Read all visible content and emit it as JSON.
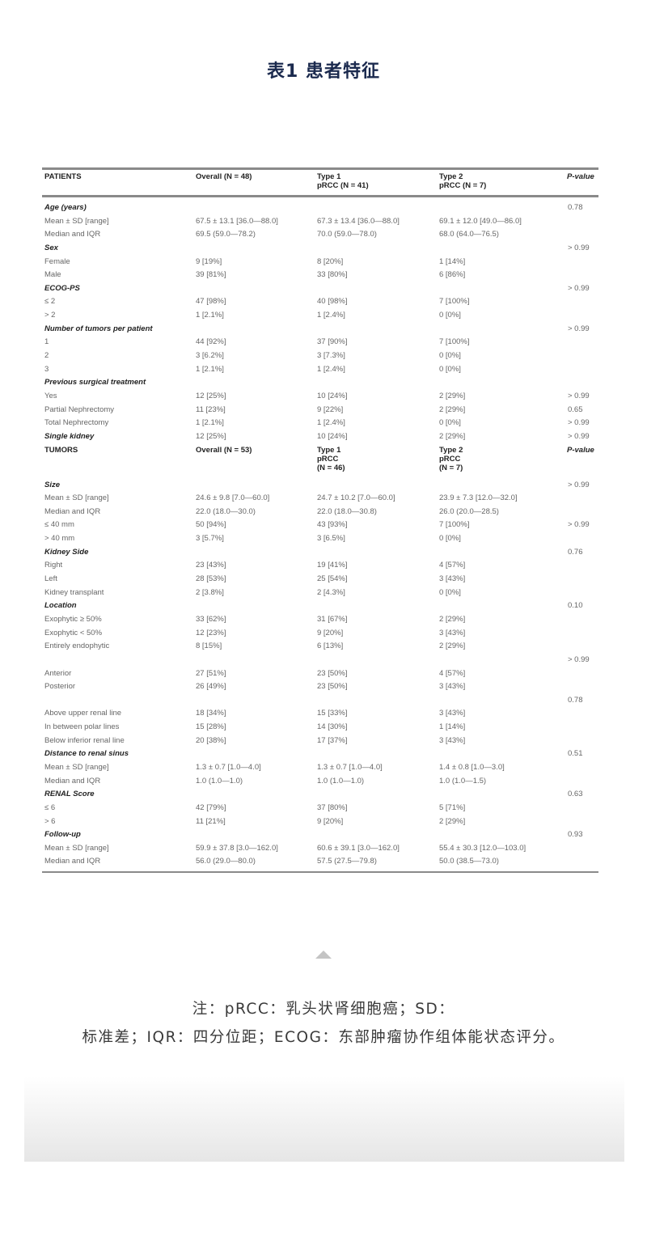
{
  "title": "表1 患者特征",
  "patients_header": {
    "label": "PATIENTS",
    "overall": "Overall (N = 48)",
    "type1": "Type 1\npRCC (N = 41)",
    "type2": "Type 2\npRCC (N = 7)",
    "p": "P-value"
  },
  "patients_rows": [
    {
      "kind": "section",
      "label": "Age (years)",
      "overall": "",
      "type1": "",
      "type2": "",
      "p": "0.78"
    },
    {
      "kind": "item",
      "label": "Mean ± SD [range]",
      "overall": "67.5 ± 13.1 [36.0—88.0]",
      "type1": "67.3 ± 13.4 [36.0—88.0]",
      "type2": "69.1 ± 12.0 [49.0—86.0]",
      "p": ""
    },
    {
      "kind": "item",
      "label": "Median and IQR",
      "overall": "69.5 (59.0—78.2)",
      "type1": "70.0 (59.0—78.0)",
      "type2": "68.0 (64.0—76.5)",
      "p": ""
    },
    {
      "kind": "section",
      "label": "Sex",
      "overall": "",
      "type1": "",
      "type2": "",
      "p": "> 0.99"
    },
    {
      "kind": "item",
      "label": "Female",
      "overall": "9 [19%]",
      "type1": "8 [20%]",
      "type2": "1 [14%]",
      "p": ""
    },
    {
      "kind": "item",
      "label": "Male",
      "overall": "39 [81%]",
      "type1": "33 [80%]",
      "type2": "6 [86%]",
      "p": ""
    },
    {
      "kind": "section",
      "label": "ECOG-PS",
      "overall": "",
      "type1": "",
      "type2": "",
      "p": "> 0.99"
    },
    {
      "kind": "item",
      "label": "≤ 2",
      "overall": "47 [98%]",
      "type1": "40 [98%]",
      "type2": "7 [100%]",
      "p": ""
    },
    {
      "kind": "item",
      "label": "> 2",
      "overall": "1 [2.1%]",
      "type1": "1 [2.4%]",
      "type2": "0 [0%]",
      "p": ""
    },
    {
      "kind": "section",
      "label": "Number of tumors per patient",
      "overall": "",
      "type1": "",
      "type2": "",
      "p": "> 0.99"
    },
    {
      "kind": "item",
      "label": "1",
      "overall": "44 [92%]",
      "type1": "37 [90%]",
      "type2": "7 [100%]",
      "p": ""
    },
    {
      "kind": "item",
      "label": "2",
      "overall": "3 [6.2%]",
      "type1": "3 [7.3%]",
      "type2": "0 [0%]",
      "p": ""
    },
    {
      "kind": "item",
      "label": "3",
      "overall": "1 [2.1%]",
      "type1": "1 [2.4%]",
      "type2": "0 [0%]",
      "p": ""
    },
    {
      "kind": "section",
      "label": "Previous surgical treatment",
      "overall": "",
      "type1": "",
      "type2": "",
      "p": ""
    },
    {
      "kind": "item",
      "label": "Yes",
      "overall": "12 [25%]",
      "type1": "10 [24%]",
      "type2": "2 [29%]",
      "p": "> 0.99"
    },
    {
      "kind": "item",
      "label": "Partial Nephrectomy",
      "overall": "11 [23%]",
      "type1": "9 [22%]",
      "type2": "2 [29%]",
      "p": "0.65"
    },
    {
      "kind": "item",
      "label": "Total Nephrectomy",
      "overall": "1 [2.1%]",
      "type1": "1 [2.4%]",
      "type2": "0 [0%]",
      "p": "> 0.99"
    },
    {
      "kind": "section",
      "label": "Single kidney",
      "overall": "12 [25%]",
      "type1": "10 [24%]",
      "type2": "2 [29%]",
      "p": "> 0.99"
    }
  ],
  "tumors_header": {
    "label": "TUMORS",
    "overall": "Overall (N = 53)",
    "type1": "Type 1\npRCC\n(N = 46)",
    "type2": "Type 2\npRCC\n(N = 7)",
    "p": "P-value"
  },
  "tumors_rows": [
    {
      "kind": "section",
      "label": "Size",
      "overall": "",
      "type1": "",
      "type2": "",
      "p": "> 0.99"
    },
    {
      "kind": "item",
      "label": "Mean ± SD [range]",
      "overall": "24.6 ± 9.8 [7.0—60.0]",
      "type1": "24.7 ± 10.2 [7.0—60.0]",
      "type2": "23.9 ± 7.3 [12.0—32.0]",
      "p": ""
    },
    {
      "kind": "item",
      "label": "Median and IQR",
      "overall": "22.0 (18.0—30.0)",
      "type1": "22.0 (18.0—30.8)",
      "type2": "26.0 (20.0—28.5)",
      "p": ""
    },
    {
      "kind": "item",
      "label": "≤ 40 mm",
      "overall": "50 [94%]",
      "type1": "43 [93%]",
      "type2": "7 [100%]",
      "p": "> 0.99"
    },
    {
      "kind": "item",
      "label": "> 40 mm",
      "overall": "3 [5.7%]",
      "type1": "3 [6.5%]",
      "type2": "0 [0%]",
      "p": ""
    },
    {
      "kind": "section",
      "label": "Kidney Side",
      "overall": "",
      "type1": "",
      "type2": "",
      "p": "0.76"
    },
    {
      "kind": "item",
      "label": "Right",
      "overall": "23 [43%]",
      "type1": "19 [41%]",
      "type2": "4 [57%]",
      "p": ""
    },
    {
      "kind": "item",
      "label": "Left",
      "overall": "28 [53%]",
      "type1": "25 [54%]",
      "type2": "3 [43%]",
      "p": ""
    },
    {
      "kind": "item",
      "label": "Kidney transplant",
      "overall": "2 [3.8%]",
      "type1": "2 [4.3%]",
      "type2": "0 [0%]",
      "p": ""
    },
    {
      "kind": "section",
      "label": "Location",
      "overall": "",
      "type1": "",
      "type2": "",
      "p": "0.10"
    },
    {
      "kind": "item",
      "label": "Exophytic ≥ 50%",
      "overall": "33 [62%]",
      "type1": "31 [67%]",
      "type2": "2 [29%]",
      "p": ""
    },
    {
      "kind": "item",
      "label": "Exophytic < 50%",
      "overall": "12 [23%]",
      "type1": "9 [20%]",
      "type2": "3 [43%]",
      "p": ""
    },
    {
      "kind": "item",
      "label": "Entirely endophytic",
      "overall": "8 [15%]",
      "type1": "6 [13%]",
      "type2": "2 [29%]",
      "p": ""
    },
    {
      "kind": "item",
      "label": "",
      "overall": "",
      "type1": "",
      "type2": "",
      "p": "> 0.99"
    },
    {
      "kind": "item",
      "label": "Anterior",
      "overall": "27 [51%]",
      "type1": "23 [50%]",
      "type2": "4 [57%]",
      "p": ""
    },
    {
      "kind": "item",
      "label": "Posterior",
      "overall": "26 [49%]",
      "type1": "23 [50%]",
      "type2": "3 [43%]",
      "p": ""
    },
    {
      "kind": "item",
      "label": "",
      "overall": "",
      "type1": "",
      "type2": "",
      "p": "0.78"
    },
    {
      "kind": "item",
      "label": "Above upper renal line",
      "overall": "18 [34%]",
      "type1": "15 [33%]",
      "type2": "3 [43%]",
      "p": ""
    },
    {
      "kind": "item",
      "label": "In between polar lines",
      "overall": "15 [28%]",
      "type1": "14 [30%]",
      "type2": "1 [14%]",
      "p": ""
    },
    {
      "kind": "item",
      "label": "Below inferior renal line",
      "overall": "20 [38%]",
      "type1": "17 [37%]",
      "type2": "3 [43%]",
      "p": ""
    },
    {
      "kind": "section",
      "label": "Distance to renal sinus",
      "overall": "",
      "type1": "",
      "type2": "",
      "p": "0.51"
    },
    {
      "kind": "item",
      "label": "Mean ± SD [range]",
      "overall": "1.3 ± 0.7 [1.0—4.0]",
      "type1": "1.3 ± 0.7 [1.0—4.0]",
      "type2": "1.4 ± 0.8 [1.0—3.0]",
      "p": ""
    },
    {
      "kind": "item",
      "label": "Median and IQR",
      "overall": "1.0 (1.0—1.0)",
      "type1": "1.0 (1.0—1.0)",
      "type2": "1.0 (1.0—1.5)",
      "p": ""
    },
    {
      "kind": "section",
      "label": "RENAL Score",
      "overall": "",
      "type1": "",
      "type2": "",
      "p": "0.63"
    },
    {
      "kind": "item",
      "label": "≤ 6",
      "overall": "42 [79%]",
      "type1": "37 [80%]",
      "type2": "5 [71%]",
      "p": ""
    },
    {
      "kind": "item",
      "label": "> 6",
      "overall": "11 [21%]",
      "type1": "9 [20%]",
      "type2": "2 [29%]",
      "p": ""
    },
    {
      "kind": "section",
      "label": "Follow-up",
      "overall": "",
      "type1": "",
      "type2": "",
      "p": "0.93"
    },
    {
      "kind": "item",
      "label": "Mean ± SD [range]",
      "overall": "59.9 ± 37.8 [3.0—162.0]",
      "type1": "60.6 ± 39.1 [3.0—162.0]",
      "type2": "55.4 ± 30.3 [12.0—103.0]",
      "p": ""
    },
    {
      "kind": "item",
      "label": "Median and IQR",
      "overall": "56.0 (29.0—80.0)",
      "type1": "57.5 (27.5—79.8)",
      "type2": "50.0 (38.5—73.0)",
      "p": ""
    }
  ],
  "icons": {
    "scroll_up": "triangle-up-icon"
  },
  "note": {
    "line1": "注：pRCC：乳头状肾细胞癌；SD：",
    "line2": "标准差；IQR：四分位距；ECOG：东部肿瘤协作组体能状态评分。"
  }
}
